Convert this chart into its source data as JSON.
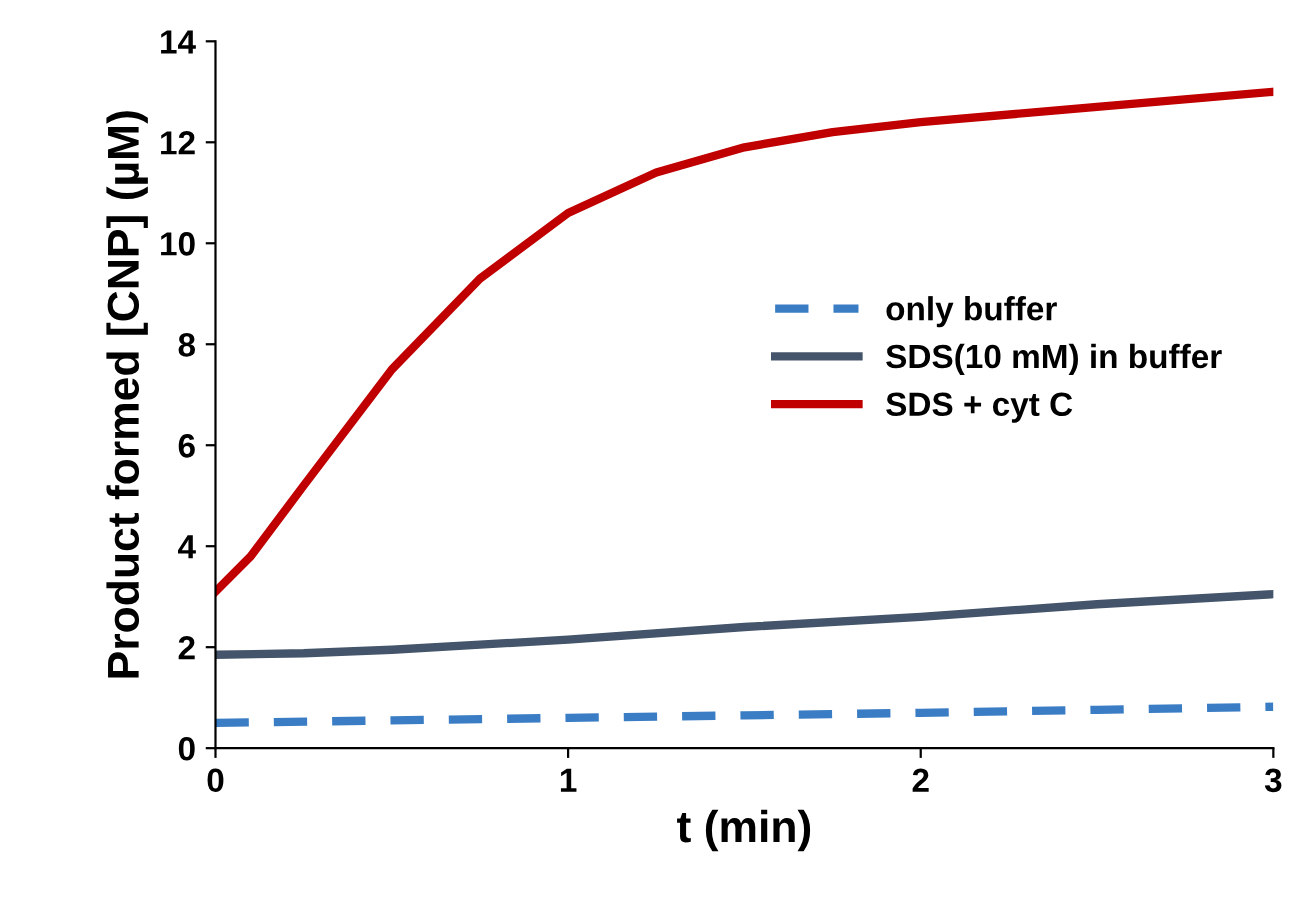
{
  "chart_data": {
    "type": "line",
    "xlabel": "t (min)",
    "ylabel": "Product formed [CNP] (µM)",
    "xlim": [
      0,
      3
    ],
    "ylim": [
      0,
      14
    ],
    "xticks": [
      0,
      1,
      2,
      3
    ],
    "yticks": [
      0,
      2,
      4,
      6,
      8,
      10,
      12,
      14
    ],
    "grid": false,
    "legend": "right",
    "marker": "none",
    "series": [
      {
        "name": "only buffer",
        "color": "#3a7dc4",
        "line_style": "dashed",
        "x": [
          0,
          0.5,
          1,
          1.5,
          2,
          2.5,
          3
        ],
        "values": [
          0.5,
          0.55,
          0.6,
          0.65,
          0.7,
          0.76,
          0.82
        ]
      },
      {
        "name": "SDS(10 mM) in buffer",
        "color": "#44546a",
        "line_style": "solid",
        "x": [
          0,
          0.25,
          0.5,
          0.75,
          1,
          1.5,
          2,
          2.5,
          3
        ],
        "values": [
          1.85,
          1.88,
          1.95,
          2.05,
          2.15,
          2.4,
          2.6,
          2.85,
          3.05
        ]
      },
      {
        "name": "SDS + cyt C",
        "color": "#c00000",
        "line_style": "solid",
        "x": [
          0,
          0.1,
          0.25,
          0.5,
          0.75,
          1,
          1.25,
          1.5,
          1.75,
          2,
          2.5,
          3
        ],
        "values": [
          3.1,
          3.8,
          5.2,
          7.5,
          9.3,
          10.6,
          11.4,
          11.9,
          12.2,
          12.4,
          12.7,
          13.0
        ]
      }
    ]
  }
}
